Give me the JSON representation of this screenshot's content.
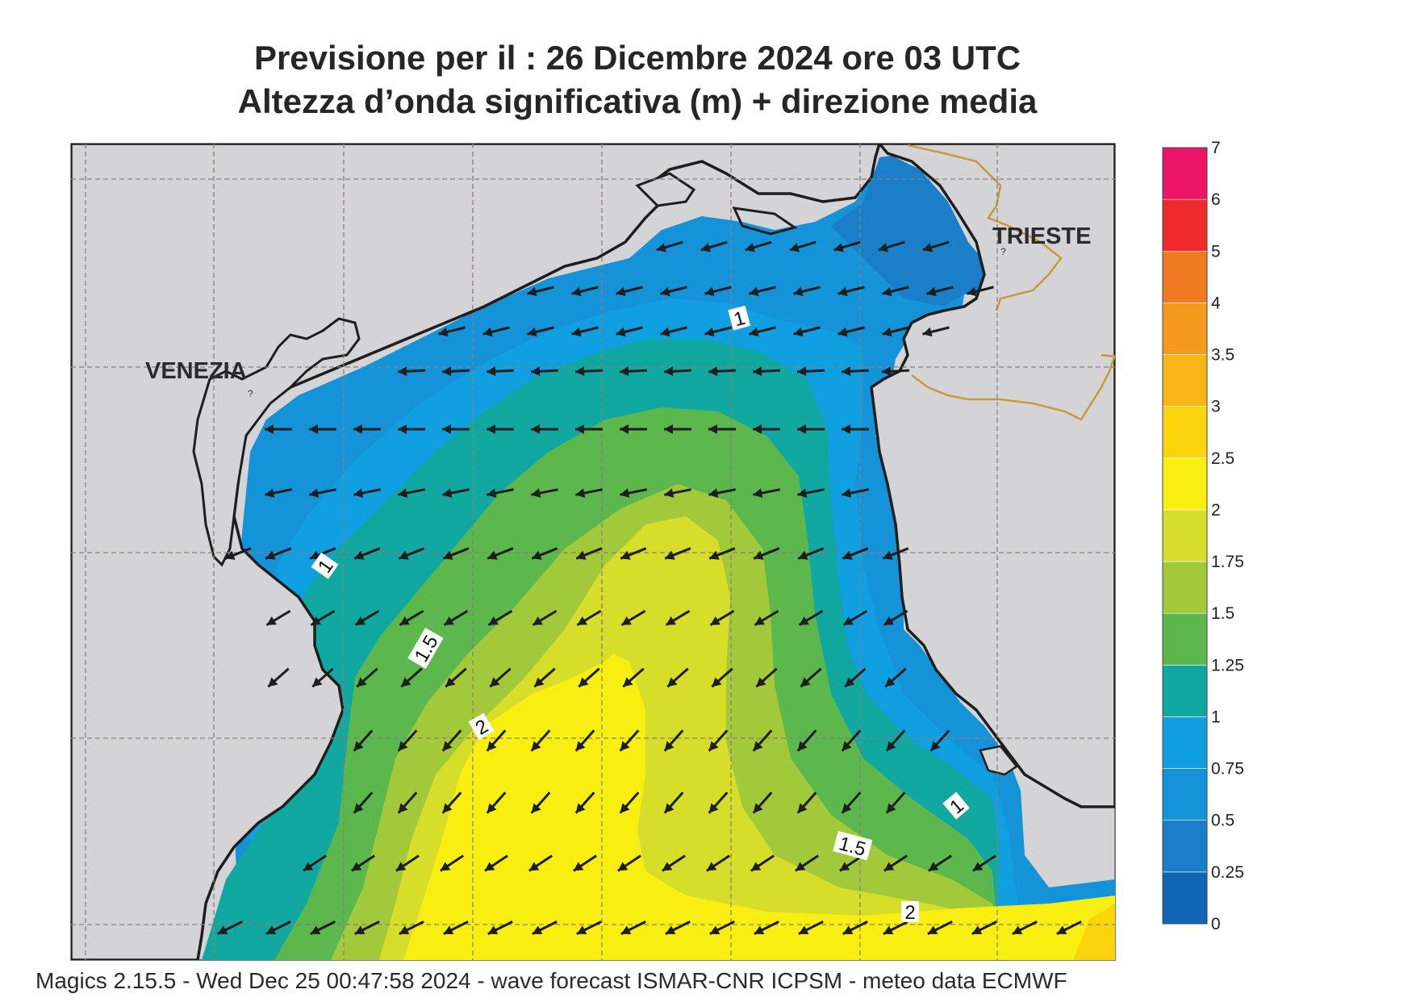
{
  "title": {
    "line1": "Previsione per il  :  26 Dicembre  2024   ore 03 UTC",
    "line2": "Altezza d’onda significativa (m) + direzione media"
  },
  "places": [
    {
      "name": "VENEZIA"
    },
    {
      "name": "TRIESTE"
    }
  ],
  "contour_labels": [
    "1",
    "1",
    "1.5",
    "2",
    "1",
    "1.5",
    "2"
  ],
  "colorbar": {
    "levels": [
      "0",
      "0.25",
      "0.5",
      "0.75",
      "1",
      "1.25",
      "1.5",
      "1.75",
      "2",
      "2.5",
      "3",
      "3.5",
      "4",
      "5",
      "6",
      "7"
    ],
    "colors": [
      "#1066b4",
      "#1a7fc8",
      "#1493d8",
      "#109fe0",
      "#10a8a0",
      "#5cb84c",
      "#a2c93a",
      "#d6de2a",
      "#f8ee10",
      "#fbd40e",
      "#f8b515",
      "#f59a1c",
      "#f07a22",
      "#ee2a2a",
      "#ec1568"
    ]
  },
  "wave_direction": "arrows pointing toward south-west / west",
  "footer": "Magics 2.15.5 - Wed Dec 25 00:47:58 2024 - wave forecast  ISMAR-CNR  ICPSM - meteo data    ECMWF",
  "colors": {
    "land": "#d4d4d6",
    "coast": "#1e1e1e",
    "border": "#c89a3c",
    "grid": "#8a7f78",
    "arrow": "#1e1e1e"
  }
}
